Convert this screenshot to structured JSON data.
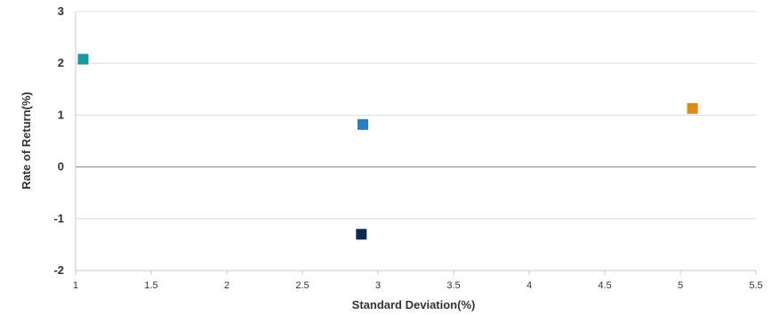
{
  "chart_data": {
    "type": "scatter",
    "title": "",
    "xlabel": "Standard Deviation(%)",
    "ylabel": "Rate of Return(%)",
    "xlim": [
      1,
      5.5
    ],
    "ylim": [
      -2,
      3
    ],
    "x_ticks": [
      "1",
      "1.5",
      "2",
      "2.5",
      "3",
      "3.5",
      "4",
      "4.5",
      "5",
      "5.5"
    ],
    "y_ticks": [
      "3",
      "2",
      "1",
      "0",
      "-1",
      "-2"
    ],
    "grid": true,
    "legend": "none",
    "points": [
      {
        "x": 1.05,
        "y": 2.08,
        "color": "#1a9aa0"
      },
      {
        "x": 2.9,
        "y": 0.82,
        "color": "#2a7fc0"
      },
      {
        "x": 5.08,
        "y": 1.13,
        "color": "#e08a10"
      },
      {
        "x": 2.89,
        "y": -1.3,
        "color": "#0d2b4e"
      }
    ]
  }
}
